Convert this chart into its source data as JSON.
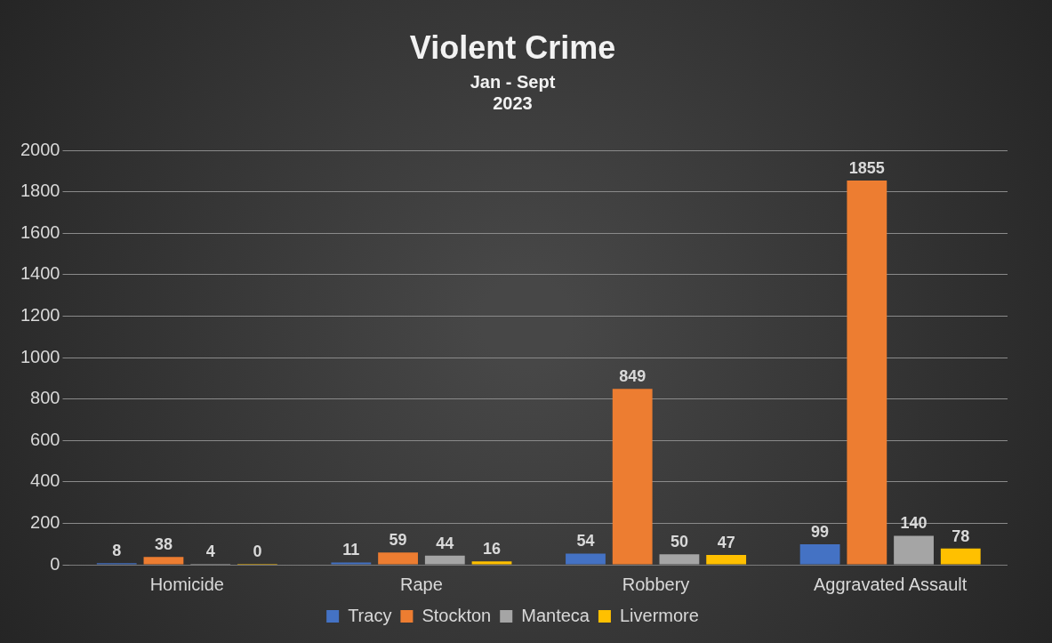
{
  "chart_data": {
    "type": "bar",
    "title": "Violent Crime",
    "subtitle": "Jan - Sept\n2023",
    "categories": [
      "Homicide",
      "Rape",
      "Robbery",
      "Aggravated Assault"
    ],
    "series": [
      {
        "name": "Tracy",
        "color": "#4472c4",
        "values": [
          8,
          11,
          54,
          99
        ]
      },
      {
        "name": "Stockton",
        "color": "#ed7d31",
        "values": [
          38,
          59,
          849,
          1855
        ]
      },
      {
        "name": "Manteca",
        "color": "#a5a5a5",
        "values": [
          4,
          44,
          50,
          140
        ]
      },
      {
        "name": "Livermore",
        "color": "#ffc000",
        "values": [
          0,
          16,
          47,
          78
        ]
      }
    ],
    "ylim": [
      0,
      2000
    ],
    "yticks": [
      0,
      200,
      400,
      600,
      800,
      1000,
      1200,
      1400,
      1600,
      1800,
      2000
    ],
    "grid": "y",
    "legend": "bottom",
    "data_labels": true
  }
}
